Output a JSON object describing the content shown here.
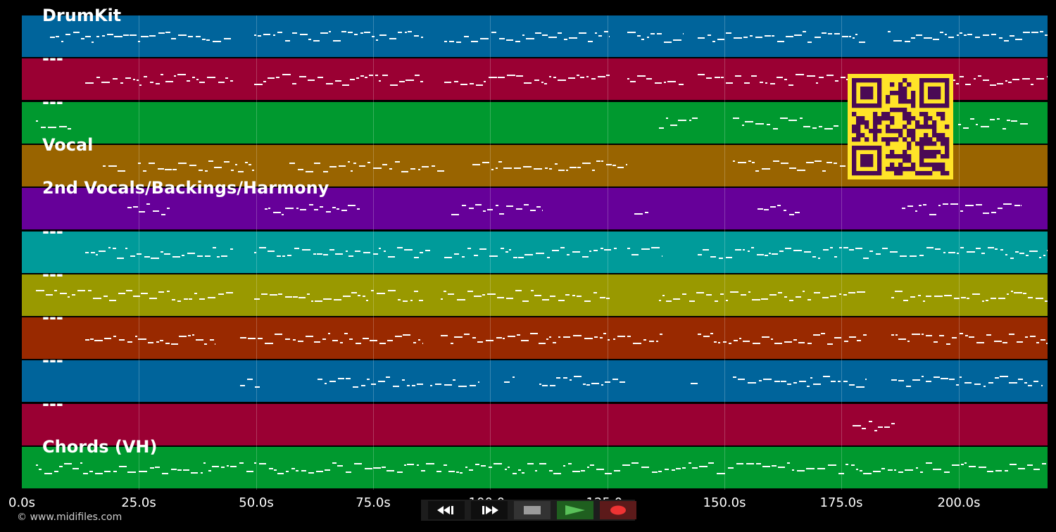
{
  "tracks": [
    {
      "label": "DrumKit",
      "color": "#00649b"
    },
    {
      "label": "---",
      "color": "#9a0033"
    },
    {
      "label": "---",
      "color": "#00992f"
    },
    {
      "label": "Vocal",
      "color": "#996400"
    },
    {
      "label": "2nd Vocals/Backings/Harmony",
      "color": "#660099"
    },
    {
      "label": "---",
      "color": "#009b9a"
    },
    {
      "label": "---",
      "color": "#999900"
    },
    {
      "label": "---",
      "color": "#992900"
    },
    {
      "label": "---",
      "color": "#00649b"
    },
    {
      "label": "---",
      "color": "#9a0033"
    },
    {
      "label": "Chords (VH)",
      "color": "#00992f"
    }
  ],
  "timeline": {
    "ticks": [
      "0.0s",
      "25.0s",
      "50.0s",
      "75.0s",
      "100.0s",
      "125.0s",
      "150.0s",
      "175.0s",
      "200.0s"
    ],
    "tick_seconds": [
      0,
      25,
      50,
      75,
      100,
      125,
      150,
      175,
      200
    ],
    "duration_seconds": 219
  },
  "copyright": "© www.midifiles.com",
  "controls": {
    "rewind_icon": "rewind-icon",
    "forward_icon": "fast-forward-icon",
    "stop_icon": "stop-icon",
    "play_icon": "play-icon",
    "record_icon": "record-icon"
  },
  "colors": {
    "background": "#000000",
    "note": "#ffffff",
    "qr_bg": "#ffe428",
    "qr_fg": "#4a0a55"
  }
}
